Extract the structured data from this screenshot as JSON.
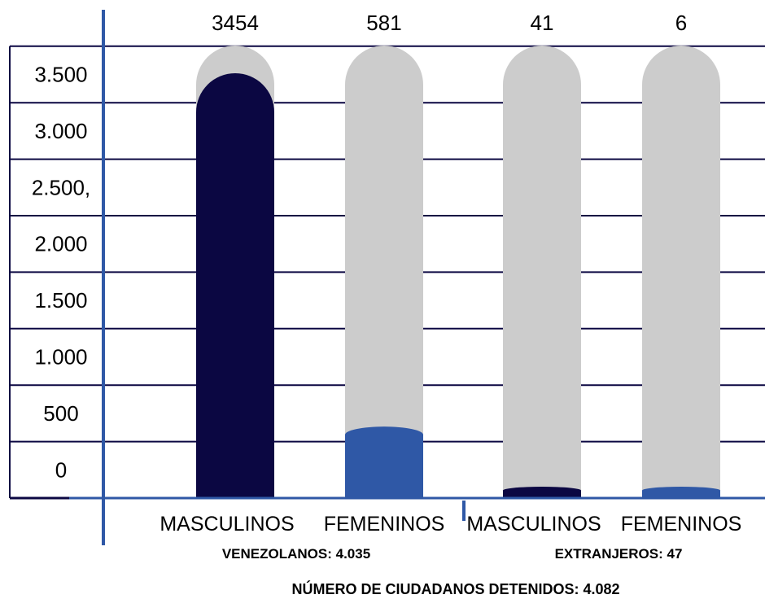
{
  "chart_data": {
    "type": "bar",
    "title": "",
    "xlabel": "",
    "ylabel": "",
    "ylim": [
      0,
      3500
    ],
    "y_ticks": [
      {
        "value": 0,
        "label": "0"
      },
      {
        "value": 500,
        "label": "500"
      },
      {
        "value": 1000,
        "label": "1.000"
      },
      {
        "value": 1500,
        "label": "1.500"
      },
      {
        "value": 2000,
        "label": "2.000"
      },
      {
        "value": 2500,
        "label": "2.500,"
      },
      {
        "value": 3000,
        "label": "3.000"
      },
      {
        "value": 3500,
        "label": "3.500"
      }
    ],
    "grid": true,
    "categories": [
      "MASCULINOS",
      "FEMENINOS",
      "MASCULINOS",
      "FEMENINOS"
    ],
    "values": [
      3454,
      581,
      41,
      6
    ],
    "value_labels": [
      "3454",
      "581",
      "41",
      "6"
    ],
    "bar_colors": [
      "#0b0742",
      "#2f58a6",
      "#0b0742",
      "#2f58a6"
    ],
    "background_bar_color": "#cccccc",
    "groups": [
      {
        "label": "VENEZOLANOS: 4.035",
        "bar_indices": [
          0,
          1
        ]
      },
      {
        "label": "EXTRANJEROS: 47",
        "bar_indices": [
          2,
          3
        ]
      }
    ],
    "footer": "NÚMERO DE CIUDADANOS DETENIDOS: 4.082"
  },
  "colors": {
    "grid_line": "#0b0742",
    "axis_line": "#2f58a6",
    "text": "#000000"
  }
}
